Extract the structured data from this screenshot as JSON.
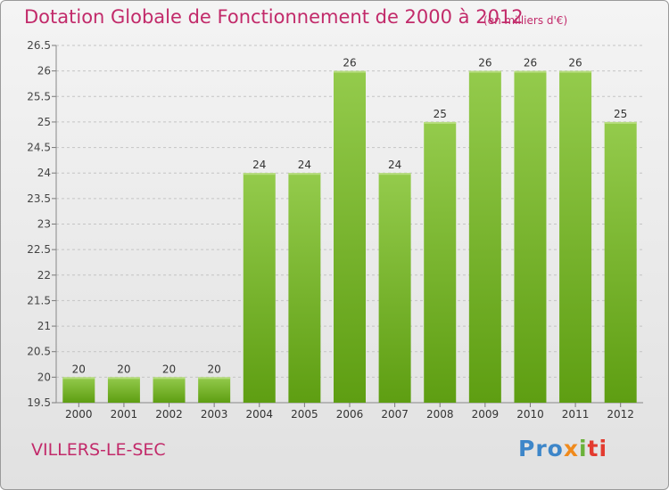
{
  "chart_data": {
    "type": "bar",
    "title": "Dotation Globale de Fonctionnement de 2000 à 2012",
    "subtitle": "(en milliers d'€)",
    "categories": [
      "2000",
      "2001",
      "2002",
      "2003",
      "2004",
      "2005",
      "2006",
      "2007",
      "2008",
      "2009",
      "2010",
      "2011",
      "2012"
    ],
    "values": [
      20,
      20,
      20,
      20,
      24,
      24,
      26,
      24,
      25,
      26,
      26,
      26,
      25
    ],
    "ylim": [
      19.5,
      26.5
    ],
    "yticks": [
      "19.5",
      "20",
      "20.5",
      "21",
      "21.5",
      "22",
      "22.5",
      "23",
      "23.5",
      "24",
      "24.5",
      "25",
      "25.5",
      "26",
      "26.5"
    ],
    "grid": true,
    "bar_color": "#8cc63f"
  },
  "commune": "VILLERS-LE-SEC",
  "logo": {
    "p1": "Pro",
    "p2": "x",
    "p3": "i",
    "p4": "ti"
  }
}
